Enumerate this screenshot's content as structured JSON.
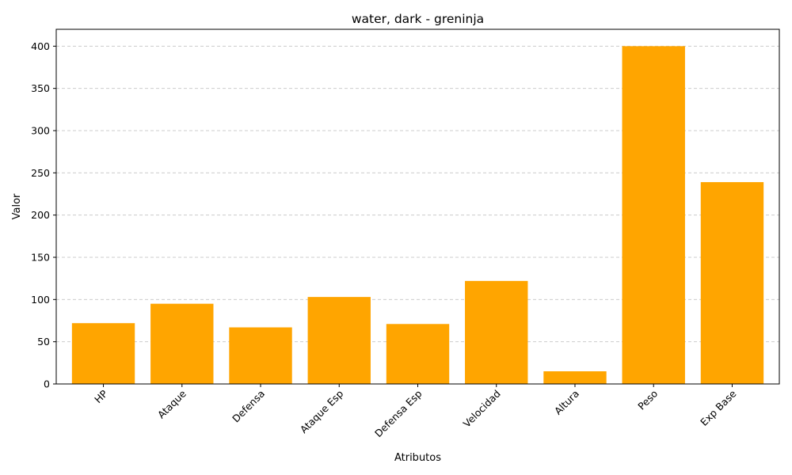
{
  "chart_data": {
    "type": "bar",
    "title": "water, dark - greninja",
    "xlabel": "Atributos",
    "ylabel": "Valor",
    "categories": [
      "HP",
      "Ataque",
      "Defensa",
      "Ataque Esp",
      "Defensa Esp",
      "Velocidad",
      "Altura",
      "Peso",
      "Exp Base"
    ],
    "values": [
      72,
      95,
      67,
      103,
      71,
      122,
      15,
      400,
      239
    ],
    "ylim": [
      0,
      420
    ],
    "yticks": [
      0,
      50,
      100,
      150,
      200,
      250,
      300,
      350,
      400
    ],
    "grid": "y-dashed",
    "bar_color": "#ffa500"
  }
}
